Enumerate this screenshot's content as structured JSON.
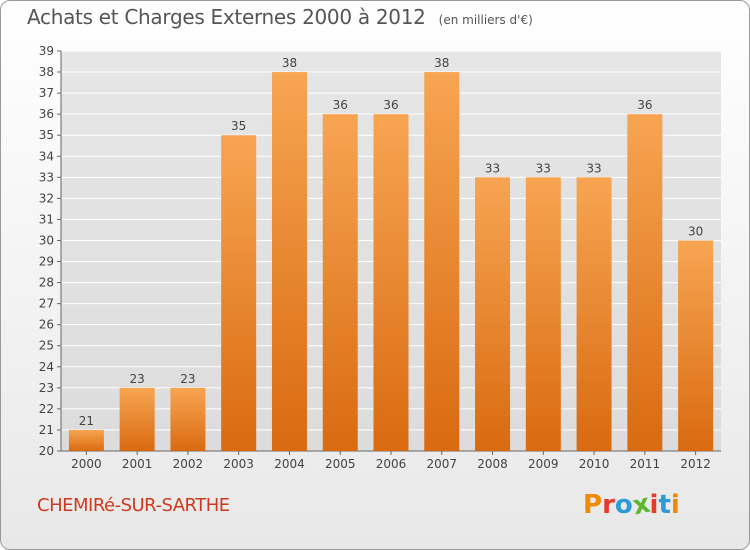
{
  "header": {
    "title": "Achats et Charges Externes 2000 à 2012",
    "unit": "(en milliers d'€)"
  },
  "footer": {
    "commune": "CHEMIRé-SUR-SARTHE",
    "logo_text": "Proxiti",
    "logo_colors": [
      "#f08a00",
      "#e43b2c",
      "#2d9bd6",
      "#5cb82f",
      "#e43b2c",
      "#2d9bd6",
      "#f08a00"
    ]
  },
  "colors": {
    "bar_top": "#f7a552",
    "bar_bottom": "#d96a10",
    "grid": "#ffffff",
    "axis_text": "#444444"
  },
  "chart_data": {
    "type": "bar",
    "title": "Achats et Charges Externes 2000 à 2012",
    "categories": [
      "2000",
      "2001",
      "2002",
      "2003",
      "2004",
      "2005",
      "2006",
      "2007",
      "2008",
      "2009",
      "2010",
      "2011",
      "2012"
    ],
    "values": [
      21,
      23,
      23,
      35,
      38,
      36,
      36,
      38,
      33,
      33,
      33,
      36,
      30
    ],
    "ylim": [
      20,
      39
    ],
    "ytick_step": 1,
    "grid": true,
    "data_labels": true,
    "xlabel": "",
    "ylabel": ""
  }
}
